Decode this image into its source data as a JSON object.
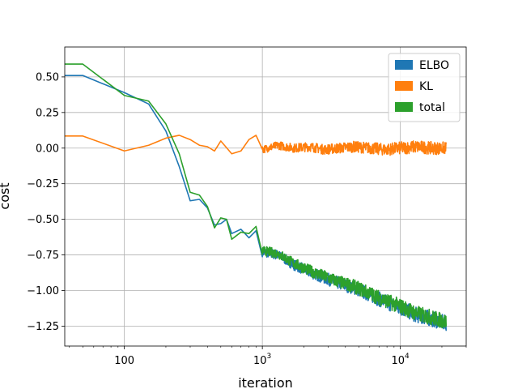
{
  "chart_data": {
    "type": "line",
    "title": "",
    "xlabel": "iteration",
    "ylabel": "cost",
    "xscale": "log",
    "xlim": [
      37,
      30000
    ],
    "ylim": [
      -1.39,
      0.71
    ],
    "grid": true,
    "legend": "top-right",
    "x_ticks": [
      {
        "value": 100,
        "base": "100",
        "exp": ""
      },
      {
        "value": 1000,
        "base": "10",
        "exp": "3"
      },
      {
        "value": 10000,
        "base": "10",
        "exp": "4"
      }
    ],
    "y_ticks": [
      {
        "value": 0.5,
        "label": "0.50"
      },
      {
        "value": 0.25,
        "label": "0.25"
      },
      {
        "value": 0.0,
        "label": "0.00"
      },
      {
        "value": -0.25,
        "label": "−0.25"
      },
      {
        "value": -0.5,
        "label": "−0.50"
      },
      {
        "value": -0.75,
        "label": "−0.75"
      },
      {
        "value": -1.0,
        "label": "−1.00"
      },
      {
        "value": -1.25,
        "label": "−1.25"
      }
    ],
    "series": [
      {
        "name": "ELBO",
        "color": "#1f77b4",
        "points": [
          [
            37,
            0.51
          ],
          [
            50,
            0.51
          ],
          [
            100,
            0.39
          ],
          [
            150,
            0.31
          ],
          [
            200,
            0.12
          ],
          [
            250,
            -0.13
          ],
          [
            300,
            -0.37
          ],
          [
            350,
            -0.36
          ],
          [
            400,
            -0.42
          ],
          [
            450,
            -0.54
          ],
          [
            500,
            -0.53
          ],
          [
            550,
            -0.5
          ],
          [
            600,
            -0.6
          ],
          [
            700,
            -0.57
          ],
          [
            800,
            -0.63
          ],
          [
            900,
            -0.58
          ],
          [
            1000,
            -0.73
          ],
          [
            1300,
            -0.75
          ],
          [
            1700,
            -0.82
          ],
          [
            2200,
            -0.87
          ],
          [
            2800,
            -0.91
          ],
          [
            3600,
            -0.95
          ],
          [
            4600,
            -0.98
          ],
          [
            6000,
            -1.03
          ],
          [
            7800,
            -1.08
          ],
          [
            10000,
            -1.12
          ],
          [
            13000,
            -1.17
          ],
          [
            17000,
            -1.2
          ],
          [
            21500,
            -1.23
          ]
        ]
      },
      {
        "name": "KL",
        "color": "#ff7f0e",
        "points": [
          [
            37,
            0.085
          ],
          [
            50,
            0.085
          ],
          [
            100,
            -0.02
          ],
          [
            150,
            0.02
          ],
          [
            200,
            0.07
          ],
          [
            250,
            0.09
          ],
          [
            300,
            0.06
          ],
          [
            350,
            0.02
          ],
          [
            400,
            0.01
          ],
          [
            450,
            -0.02
          ],
          [
            500,
            0.05
          ],
          [
            600,
            -0.04
          ],
          [
            700,
            -0.02
          ],
          [
            800,
            0.06
          ],
          [
            900,
            0.09
          ],
          [
            1000,
            -0.01
          ],
          [
            1300,
            0.02
          ],
          [
            1700,
            0.0
          ],
          [
            2200,
            0.01
          ],
          [
            2800,
            -0.01
          ],
          [
            3600,
            0.0
          ],
          [
            4600,
            0.01
          ],
          [
            6000,
            0.0
          ],
          [
            7800,
            -0.01
          ],
          [
            10000,
            0.0
          ],
          [
            13000,
            0.01
          ],
          [
            17000,
            0.0
          ],
          [
            21500,
            0.0
          ]
        ]
      },
      {
        "name": "total",
        "color": "#2ca02c",
        "points": [
          [
            37,
            0.59
          ],
          [
            50,
            0.59
          ],
          [
            100,
            0.37
          ],
          [
            150,
            0.33
          ],
          [
            200,
            0.17
          ],
          [
            250,
            -0.04
          ],
          [
            300,
            -0.31
          ],
          [
            350,
            -0.33
          ],
          [
            400,
            -0.41
          ],
          [
            450,
            -0.56
          ],
          [
            500,
            -0.49
          ],
          [
            550,
            -0.5
          ],
          [
            600,
            -0.64
          ],
          [
            700,
            -0.59
          ],
          [
            800,
            -0.6
          ],
          [
            900,
            -0.55
          ],
          [
            1000,
            -0.72
          ],
          [
            1300,
            -0.74
          ],
          [
            1700,
            -0.81
          ],
          [
            2200,
            -0.86
          ],
          [
            2800,
            -0.9
          ],
          [
            3600,
            -0.94
          ],
          [
            4600,
            -0.97
          ],
          [
            6000,
            -1.02
          ],
          [
            7800,
            -1.07
          ],
          [
            10000,
            -1.11
          ],
          [
            13000,
            -1.16
          ],
          [
            17000,
            -1.19
          ],
          [
            21500,
            -1.22
          ]
        ]
      }
    ]
  }
}
